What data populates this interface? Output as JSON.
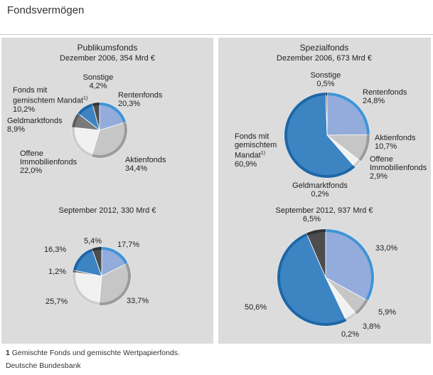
{
  "title": "Fondsvermögen",
  "panel_titles": [
    "Publikumsfonds",
    "Spezialfonds"
  ],
  "footnote": {
    "number": "1",
    "mark": "1)",
    "text": "Gemischte Fonds und gemischte Wertpapierfonds."
  },
  "source": "Deutsche Bundesbank",
  "chart_data": [
    {
      "type": "pie",
      "title": "Dezember 2006, 354 Mrd €",
      "categories": [
        "Rentenfonds",
        "Aktienfonds",
        "Offene Immobilienfonds",
        "Geldmarktfonds",
        "Fonds mit gemischtem Mandat",
        "Sonstige"
      ],
      "values": [
        20.3,
        34.4,
        22.0,
        8.9,
        10.2,
        4.2
      ],
      "value_labels": [
        "20,3%",
        "34,4%",
        "22,0%",
        "8,9%",
        "10,2%",
        "4,2%"
      ],
      "colors": [
        "#93acdc",
        "#c6c6c6",
        "#f1f1f1",
        "#7a7a7a",
        "#3d84c3",
        "#4d4d4f"
      ],
      "edge_colors": [
        "#3f94d6",
        "#9b9b9b",
        "#cdcdcd",
        "#5e5e5e",
        "#1e67a6",
        "#333335"
      ]
    },
    {
      "type": "pie",
      "title": "September 2012, 330 Mrd €",
      "values": [
        17.7,
        33.7,
        25.7,
        1.2,
        16.3,
        5.4
      ],
      "value_labels": [
        "17,7%",
        "33,7%",
        "25,7%",
        "1,2%",
        "16,3%",
        "5,4%"
      ],
      "colors": [
        "#93acdc",
        "#c6c6c6",
        "#f1f1f1",
        "#7a7a7a",
        "#3d84c3",
        "#4d4d4f"
      ],
      "edge_colors": [
        "#3f94d6",
        "#9b9b9b",
        "#cdcdcd",
        "#5e5e5e",
        "#1e67a6",
        "#333335"
      ]
    },
    {
      "type": "pie",
      "title": "Dezember 2006, 673 Mrd €",
      "categories": [
        "Rentenfonds",
        "Aktienfonds",
        "Offene Immobilienfonds",
        "Geldmarktfonds",
        "Fonds mit gemischtem Mandat",
        "Sonstige"
      ],
      "values": [
        24.8,
        10.7,
        2.9,
        0.2,
        60.9,
        0.5
      ],
      "value_labels": [
        "24,8%",
        "10,7%",
        "2,9%",
        "0,2%",
        "60,9%",
        "0,5%"
      ],
      "colors": [
        "#93acdc",
        "#c6c6c6",
        "#f1f1f1",
        "#7a7a7a",
        "#3d84c3",
        "#4d4d4f"
      ],
      "edge_colors": [
        "#3f94d6",
        "#9b9b9b",
        "#cdcdcd",
        "#5e5e5e",
        "#1e67a6",
        "#333335"
      ]
    },
    {
      "type": "pie",
      "title": "September 2012, 937 Mrd €",
      "values": [
        33.0,
        5.9,
        3.8,
        0.2,
        50.6,
        6.5
      ],
      "value_labels": [
        "33,0%",
        "5,9%",
        "3,8%",
        "0,2%",
        "50,6%",
        "6,5%"
      ],
      "colors": [
        "#93acdc",
        "#c6c6c6",
        "#f1f1f1",
        "#7a7a7a",
        "#3d84c3",
        "#4d4d4f"
      ],
      "edge_colors": [
        "#3f94d6",
        "#9b9b9b",
        "#cdcdcd",
        "#5e5e5e",
        "#1e67a6",
        "#333335"
      ]
    }
  ]
}
